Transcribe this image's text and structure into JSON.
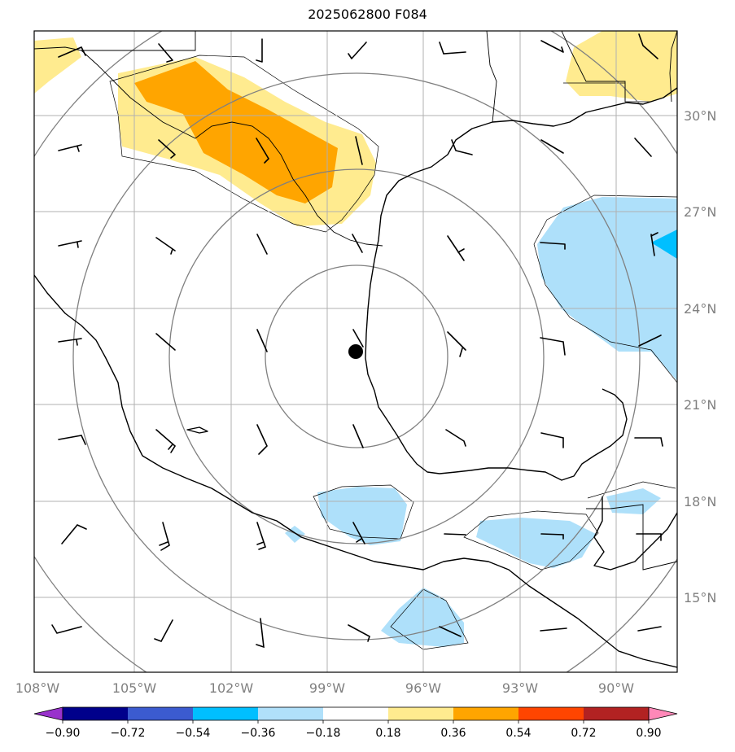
{
  "title": "2025062800 F084",
  "map": {
    "lon_range": [
      -108,
      -88.5
    ],
    "lat_range": [
      13,
      32.5
    ],
    "lon_ticks": [
      {
        "value": -108,
        "label": "108°W"
      },
      {
        "value": -105,
        "label": "105°W"
      },
      {
        "value": -102,
        "label": "102°W"
      },
      {
        "value": -99,
        "label": "99°W"
      },
      {
        "value": -96,
        "label": "96°W"
      },
      {
        "value": -93,
        "label": "93°W"
      },
      {
        "value": -90,
        "label": "90°W"
      }
    ],
    "lat_ticks": [
      {
        "value": 30,
        "label": "30°N"
      },
      {
        "value": 27,
        "label": "27°N"
      },
      {
        "value": 24,
        "label": "24°N"
      },
      {
        "value": 21,
        "label": "21°N"
      },
      {
        "value": 18,
        "label": "18°N"
      },
      {
        "value": 15,
        "label": "15°N"
      }
    ],
    "center_marker": {
      "lon": -97.9,
      "lat": 22.6
    },
    "range_rings_deg": [
      2.8,
      5.8,
      8.8,
      11.8
    ],
    "colors": {
      "gridline": "#b0b0b0",
      "ring": "#808080",
      "coast": "#000000",
      "pos_018_036": "#ffeb8f",
      "pos_036_054": "#ffa500",
      "neg_036_018": "#aee0fa",
      "neg_054_036": "#00bfff"
    }
  },
  "colorbar": {
    "ticks": [
      "−0.90",
      "−0.72",
      "−0.54",
      "−0.36",
      "−0.18",
      "0.18",
      "0.36",
      "0.54",
      "0.72",
      "0.90"
    ],
    "under_color": "#9932cc",
    "over_color": "#ff88b8",
    "colors": [
      "#00008b",
      "#3b5bd0",
      "#00bfff",
      "#b0e0fa",
      "#ffffff",
      "#ffeb8f",
      "#ffa500",
      "#ff4500",
      "#b22222"
    ]
  }
}
